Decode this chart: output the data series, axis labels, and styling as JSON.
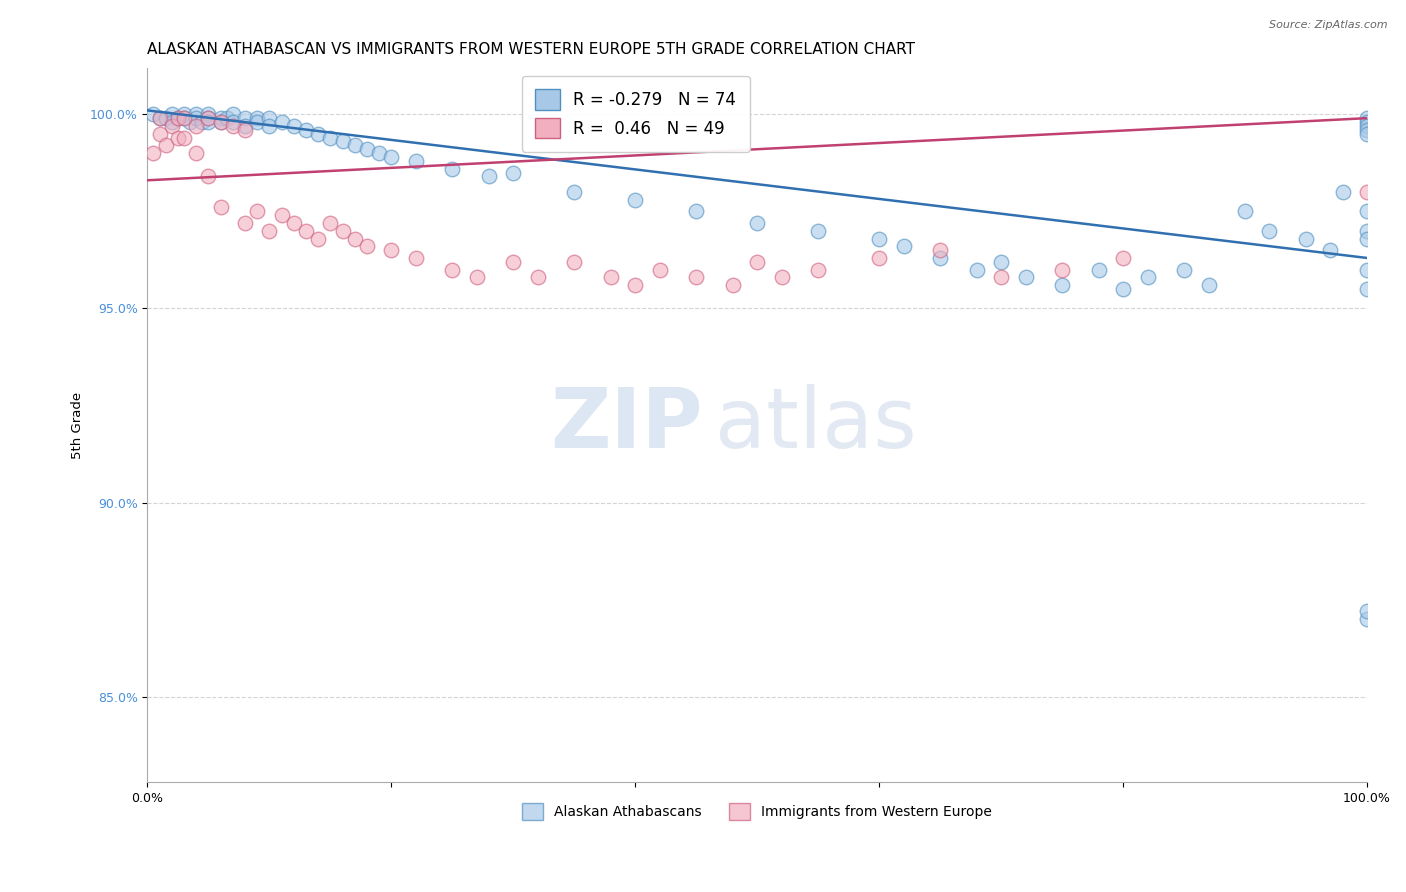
{
  "title": "ALASKAN ATHABASCAN VS IMMIGRANTS FROM WESTERN EUROPE 5TH GRADE CORRELATION CHART",
  "source": "Source: ZipAtlas.com",
  "ylabel": "5th Grade",
  "xlim": [
    0.0,
    1.0
  ],
  "ylim": [
    0.828,
    1.012
  ],
  "yticks": [
    0.85,
    0.9,
    0.95,
    1.0
  ],
  "ytick_labels": [
    "85.0%",
    "90.0%",
    "95.0%",
    "100.0%"
  ],
  "blue_R": -0.279,
  "blue_N": 74,
  "pink_R": 0.46,
  "pink_N": 49,
  "blue_fill": "#a8c8e8",
  "pink_fill": "#f0b0c0",
  "blue_edge": "#5090c0",
  "pink_edge": "#d06080",
  "blue_line_color": "#3070b0",
  "pink_line_color": "#c04070",
  "legend_label_blue": "Alaskan Athabascans",
  "legend_label_pink": "Immigrants from Western Europe",
  "blue_scatter_x": [
    0.005,
    0.01,
    0.015,
    0.02,
    0.02,
    0.025,
    0.03,
    0.03,
    0.035,
    0.04,
    0.04,
    0.045,
    0.05,
    0.05,
    0.05,
    0.06,
    0.06,
    0.065,
    0.07,
    0.07,
    0.08,
    0.08,
    0.09,
    0.09,
    0.1,
    0.1,
    0.11,
    0.12,
    0.13,
    0.14,
    0.15,
    0.16,
    0.17,
    0.18,
    0.19,
    0.2,
    0.22,
    0.25,
    0.28,
    0.3,
    0.35,
    0.4,
    0.45,
    0.5,
    0.55,
    0.6,
    0.62,
    0.65,
    0.68,
    0.7,
    0.72,
    0.75,
    0.78,
    0.8,
    0.82,
    0.85,
    0.87,
    0.9,
    0.92,
    0.95,
    0.97,
    0.98,
    1.0,
    1.0,
    1.0,
    1.0,
    1.0,
    1.0,
    1.0,
    1.0,
    1.0,
    1.0,
    1.0,
    1.0
  ],
  "blue_scatter_y": [
    1.0,
    0.999,
    0.999,
    1.0,
    0.998,
    0.999,
    1.0,
    0.999,
    0.998,
    1.0,
    0.999,
    0.998,
    1.0,
    0.999,
    0.998,
    0.999,
    0.998,
    0.999,
    1.0,
    0.998,
    0.999,
    0.997,
    0.999,
    0.998,
    0.999,
    0.997,
    0.998,
    0.997,
    0.996,
    0.995,
    0.994,
    0.993,
    0.992,
    0.991,
    0.99,
    0.989,
    0.988,
    0.986,
    0.984,
    0.985,
    0.98,
    0.978,
    0.975,
    0.972,
    0.97,
    0.968,
    0.966,
    0.963,
    0.96,
    0.962,
    0.958,
    0.956,
    0.96,
    0.955,
    0.958,
    0.96,
    0.956,
    0.975,
    0.97,
    0.968,
    0.965,
    0.98,
    0.999,
    0.998,
    0.997,
    0.996,
    0.995,
    0.975,
    0.97,
    0.968,
    0.96,
    0.955,
    0.87,
    0.872
  ],
  "pink_scatter_x": [
    0.005,
    0.01,
    0.01,
    0.015,
    0.02,
    0.025,
    0.025,
    0.03,
    0.03,
    0.04,
    0.04,
    0.05,
    0.05,
    0.06,
    0.06,
    0.07,
    0.08,
    0.08,
    0.09,
    0.1,
    0.11,
    0.12,
    0.13,
    0.14,
    0.15,
    0.16,
    0.17,
    0.18,
    0.2,
    0.22,
    0.25,
    0.27,
    0.3,
    0.32,
    0.35,
    0.38,
    0.4,
    0.42,
    0.45,
    0.48,
    0.5,
    0.52,
    0.55,
    0.6,
    0.65,
    0.7,
    0.75,
    0.8,
    1.0
  ],
  "pink_scatter_y": [
    0.99,
    0.999,
    0.995,
    0.992,
    0.997,
    0.999,
    0.994,
    0.999,
    0.994,
    0.997,
    0.99,
    0.999,
    0.984,
    0.998,
    0.976,
    0.997,
    0.996,
    0.972,
    0.975,
    0.97,
    0.974,
    0.972,
    0.97,
    0.968,
    0.972,
    0.97,
    0.968,
    0.966,
    0.965,
    0.963,
    0.96,
    0.958,
    0.962,
    0.958,
    0.962,
    0.958,
    0.956,
    0.96,
    0.958,
    0.956,
    0.962,
    0.958,
    0.96,
    0.963,
    0.965,
    0.958,
    0.96,
    0.963,
    0.98
  ],
  "blue_line_y_start": 1.001,
  "blue_line_y_end": 0.963,
  "pink_line_y_start": 0.983,
  "pink_line_y_end": 0.999,
  "background_color": "#ffffff",
  "grid_color": "#d0d0d0",
  "title_fontsize": 11,
  "axis_fontsize": 9,
  "marker_size": 110,
  "watermark_zip": "ZIP",
  "watermark_atlas": "atlas"
}
